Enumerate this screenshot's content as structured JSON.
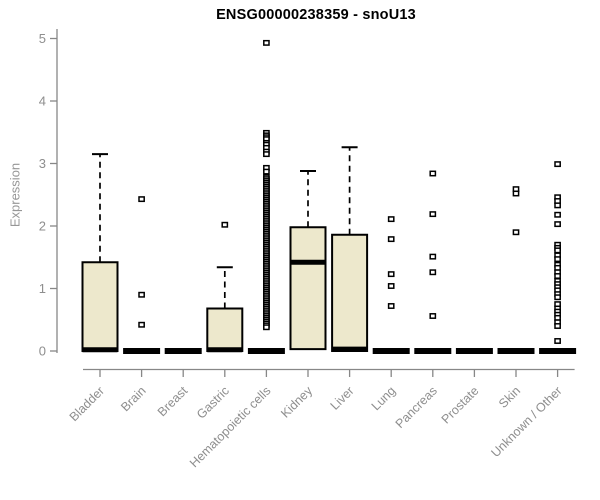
{
  "title": "ENSG00000238359 - snoU13",
  "chart_data": {
    "type": "boxplot",
    "title": "ENSG00000238359 - snoU13",
    "xlabel": "",
    "ylabel": "Expression",
    "ylim": [
      0,
      5
    ],
    "yticks": [
      0,
      1,
      2,
      3,
      4,
      5
    ],
    "grid": false,
    "legend": "none",
    "categories": [
      "Bladder",
      "Brain",
      "Breast",
      "Gastric",
      "Hematopoietic cells",
      "Kidney",
      "Liver",
      "Lung",
      "Pancreas",
      "Prostate",
      "Skin",
      "Unknown / Other"
    ],
    "boxes": [
      {
        "category": "Bladder",
        "q1": 0,
        "median": 0.02,
        "q3": 1.42,
        "whisker_low": 0,
        "whisker_high": 3.15,
        "outliers": []
      },
      {
        "category": "Brain",
        "q1": 0,
        "median": 0,
        "q3": 0,
        "whisker_low": 0,
        "whisker_high": 0,
        "outliers": [
          2.43,
          0.9,
          0.42
        ]
      },
      {
        "category": "Breast",
        "q1": 0,
        "median": 0,
        "q3": 0,
        "whisker_low": 0,
        "whisker_high": 0,
        "outliers": []
      },
      {
        "category": "Gastric",
        "q1": 0,
        "median": 0.02,
        "q3": 0.68,
        "whisker_low": 0,
        "whisker_high": 1.34,
        "outliers": [
          2.02
        ]
      },
      {
        "category": "Hematopoietic cells",
        "q1": 0,
        "median": 0,
        "q3": 0,
        "whisker_low": 0,
        "whisker_high": 0,
        "outliers": [
          4.93,
          3.49,
          3.45,
          3.42,
          3.39,
          3.33,
          3.3,
          3.25,
          3.19,
          3.15,
          2.93,
          2.87,
          2.78,
          2.75,
          2.72,
          2.69,
          2.66,
          2.63,
          2.6,
          2.57,
          2.54,
          2.51,
          2.48,
          2.45,
          2.42,
          2.39,
          2.36,
          2.33,
          2.3,
          2.27,
          2.24,
          2.21,
          2.18,
          2.15,
          2.12,
          2.09,
          2.06,
          2.03,
          2.0,
          1.97,
          1.94,
          1.91,
          1.88,
          1.85,
          1.82,
          1.79,
          1.76,
          1.73,
          1.7,
          1.67,
          1.64,
          1.61,
          1.58,
          1.55,
          1.52,
          1.49,
          1.46,
          1.43,
          1.4,
          1.37,
          1.34,
          1.31,
          1.28,
          1.25,
          1.22,
          1.19,
          1.16,
          1.13,
          1.1,
          1.07,
          1.04,
          1.01,
          0.98,
          0.95,
          0.92,
          0.89,
          0.86,
          0.83,
          0.8,
          0.77,
          0.74,
          0.71,
          0.68,
          0.65,
          0.62,
          0.59,
          0.56,
          0.53,
          0.5,
          0.47,
          0.44,
          0.41,
          0.38
        ]
      },
      {
        "category": "Kidney",
        "q1": 0.03,
        "median": 1.42,
        "q3": 1.98,
        "whisker_low": 0.03,
        "whisker_high": 2.88,
        "outliers": []
      },
      {
        "category": "Liver",
        "q1": 0,
        "median": 0.03,
        "q3": 1.86,
        "whisker_low": 0,
        "whisker_high": 3.26,
        "outliers": []
      },
      {
        "category": "Lung",
        "q1": 0,
        "median": 0,
        "q3": 0,
        "whisker_low": 0,
        "whisker_high": 0,
        "outliers": [
          2.11,
          1.79,
          1.23,
          1.04,
          0.72
        ]
      },
      {
        "category": "Pancreas",
        "q1": 0,
        "median": 0,
        "q3": 0,
        "whisker_low": 0,
        "whisker_high": 0,
        "outliers": [
          2.84,
          2.19,
          1.51,
          1.26,
          0.56
        ]
      },
      {
        "category": "Prostate",
        "q1": 0,
        "median": 0,
        "q3": 0,
        "whisker_low": 0,
        "whisker_high": 0,
        "outliers": []
      },
      {
        "category": "Skin",
        "q1": 0,
        "median": 0,
        "q3": 0,
        "whisker_low": 0,
        "whisker_high": 0,
        "outliers": [
          2.59,
          2.52,
          1.9
        ]
      },
      {
        "category": "Unknown / Other",
        "q1": 0,
        "median": 0,
        "q3": 0,
        "whisker_low": 0,
        "whisker_high": 0,
        "outliers": [
          2.99,
          2.46,
          2.4,
          2.33,
          2.18,
          2.03,
          1.7,
          1.65,
          1.61,
          1.53,
          1.47,
          1.38,
          1.33,
          1.26,
          1.2,
          1.12,
          1.07,
          1.02,
          0.97,
          0.91,
          0.86,
          0.75,
          0.68,
          0.63,
          0.58,
          0.53,
          0.46,
          0.4,
          0.16
        ]
      }
    ],
    "style": {
      "box_fill": "#ede8cc",
      "box_border": "#000000",
      "median_color": "#000000",
      "whisker_style": "dashed",
      "outlier_marker": "open-square",
      "axis_color": "#878787",
      "tick_label_color": "#8e8e8e",
      "title_color": "#000000",
      "background": "#ffffff"
    }
  }
}
